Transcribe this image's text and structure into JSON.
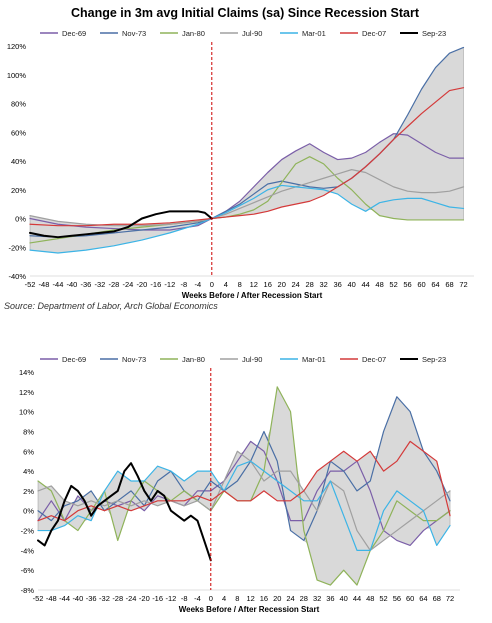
{
  "source_note": "Source: Department of Labor, Arch Global Economics",
  "chart_data": [
    {
      "type": "line",
      "title": "Change in 3m avg Initial Claims (sa) Since Recession Start",
      "xlabel": "Weeks Before / After Recession Start",
      "ylabel": "",
      "x_ticks": [
        "-52",
        "-48",
        "-44",
        "-40",
        "-36",
        "-32",
        "-28",
        "-24",
        "-20",
        "-16",
        "-12",
        "-8",
        "-4",
        "0",
        "4",
        "8",
        "12",
        "16",
        "20",
        "24",
        "28",
        "32",
        "36",
        "40",
        "44",
        "48",
        "52",
        "56",
        "60",
        "64",
        "68",
        "72"
      ],
      "y_ticks": [
        "120%",
        "100%",
        "80%",
        "60%",
        "40%",
        "20%",
        "0%",
        "-20%",
        "-40%"
      ],
      "ylim": [
        -40,
        120
      ],
      "xlim": [
        -52,
        75
      ],
      "grid": false,
      "legend": "top",
      "recession_start_marker": 0,
      "shaded_band": "min-max range of past recessions (grey)",
      "series": [
        {
          "name": "Dec-69",
          "color": "#7b5fa8",
          "x": [
            -52,
            -44,
            -36,
            -28,
            -20,
            -12,
            -4,
            0,
            4,
            8,
            12,
            16,
            20,
            24,
            28,
            32,
            36,
            40,
            44,
            48,
            52,
            56,
            60,
            64,
            68,
            72
          ],
          "values": [
            0,
            -4,
            -6,
            -7,
            -8,
            -8,
            -5,
            0,
            5,
            12,
            22,
            32,
            41,
            47,
            52,
            46,
            41,
            42,
            46,
            53,
            59,
            58,
            52,
            46,
            42,
            42
          ]
        },
        {
          "name": "Nov-73",
          "color": "#4a6fa5",
          "x": [
            -52,
            -44,
            -36,
            -28,
            -20,
            -12,
            -4,
            0,
            4,
            8,
            12,
            16,
            20,
            24,
            28,
            32,
            36,
            40,
            44,
            48,
            52,
            56,
            60,
            64,
            68,
            72
          ],
          "values": [
            -12,
            -13,
            -12,
            -10,
            -8,
            -6,
            -3,
            0,
            5,
            10,
            17,
            24,
            26,
            24,
            22,
            21,
            22,
            28,
            36,
            45,
            55,
            72,
            90,
            105,
            115,
            119
          ]
        },
        {
          "name": "Jan-80",
          "color": "#8fb35a",
          "x": [
            -52,
            -44,
            -36,
            -28,
            -20,
            -12,
            -4,
            0,
            4,
            8,
            12,
            16,
            20,
            24,
            28,
            32,
            36,
            40,
            44,
            48,
            52,
            56,
            60,
            64,
            68,
            72
          ],
          "values": [
            -17,
            -14,
            -11,
            -8,
            -6,
            -4,
            -2,
            0,
            1,
            3,
            6,
            12,
            25,
            38,
            43,
            38,
            28,
            20,
            10,
            2,
            0,
            -1,
            -1,
            -1,
            -1,
            -1
          ]
        },
        {
          "name": "Jul-90",
          "color": "#a0a0a0",
          "x": [
            -52,
            -44,
            -36,
            -28,
            -20,
            -12,
            -4,
            0,
            4,
            8,
            12,
            16,
            20,
            24,
            28,
            32,
            36,
            40,
            44,
            48,
            52,
            56,
            60,
            64,
            68,
            72
          ],
          "values": [
            2,
            -2,
            -4,
            -5,
            -5,
            -4,
            -2,
            0,
            3,
            7,
            11,
            15,
            19,
            22,
            25,
            28,
            31,
            34,
            32,
            27,
            22,
            19,
            18,
            18,
            19,
            22
          ]
        },
        {
          "name": "Mar-01",
          "color": "#3cb4e6",
          "x": [
            -52,
            -44,
            -36,
            -28,
            -20,
            -12,
            -4,
            0,
            4,
            8,
            12,
            16,
            20,
            24,
            28,
            32,
            36,
            40,
            44,
            48,
            52,
            56,
            60,
            64,
            68,
            72
          ],
          "values": [
            -22,
            -24,
            -22,
            -19,
            -15,
            -10,
            -4,
            0,
            4,
            9,
            14,
            20,
            23,
            22,
            21,
            20,
            17,
            10,
            5,
            11,
            13,
            14,
            14,
            11,
            8,
            7
          ]
        },
        {
          "name": "Dec-07",
          "color": "#d43a3a",
          "x": [
            -52,
            -44,
            -36,
            -28,
            -20,
            -12,
            -4,
            0,
            4,
            8,
            12,
            16,
            20,
            24,
            28,
            32,
            36,
            40,
            44,
            48,
            52,
            56,
            60,
            64,
            68,
            72
          ],
          "values": [
            -4,
            -5,
            -5,
            -4,
            -4,
            -3,
            -1,
            0,
            1,
            2,
            3,
            5,
            8,
            10,
            12,
            16,
            22,
            28,
            36,
            45,
            55,
            64,
            73,
            81,
            89,
            91
          ]
        },
        {
          "name": "Sep-23",
          "color": "#000000",
          "x": [
            -52,
            -48,
            -44,
            -40,
            -36,
            -32,
            -28,
            -24,
            -20,
            -16,
            -12,
            -8,
            -4,
            -2,
            0
          ],
          "values": [
            -10,
            -12,
            -13,
            -12,
            -11,
            -10,
            -9,
            -6,
            0,
            3,
            5,
            5,
            5,
            4,
            0
          ]
        }
      ]
    },
    {
      "type": "line",
      "title": "",
      "xlabel": "Weeks Before / After Recession Start",
      "ylabel": "",
      "x_ticks": [
        "-52",
        "-48",
        "-44",
        "-40",
        "-36",
        "-32",
        "-28",
        "-24",
        "-20",
        "-16",
        "-12",
        "-8",
        "-4",
        "0",
        "4",
        "8",
        "12",
        "16",
        "20",
        "24",
        "28",
        "32",
        "36",
        "40",
        "44",
        "48",
        "52",
        "56",
        "60",
        "64",
        "68",
        "72"
      ],
      "y_ticks": [
        "14%",
        "12%",
        "10%",
        "8%",
        "6%",
        "4%",
        "2%",
        "0%",
        "-2%",
        "-4%",
        "-6%",
        "-8%"
      ],
      "ylim": [
        -8,
        14
      ],
      "xlim": [
        -52,
        75
      ],
      "grid": false,
      "legend": "top",
      "recession_start_marker": 0,
      "shaded_band": "min-max range of past recessions (grey)",
      "series": [
        {
          "name": "Dec-69",
          "color": "#7b5fa8",
          "x": [
            -52,
            -48,
            -44,
            -40,
            -36,
            -32,
            -28,
            -24,
            -20,
            -16,
            -12,
            -8,
            -4,
            0,
            4,
            8,
            12,
            16,
            20,
            24,
            28,
            32,
            36,
            40,
            44,
            48,
            52,
            56,
            60,
            64,
            68,
            72
          ],
          "values": [
            -1,
            1,
            -1,
            1.5,
            0,
            1,
            0.5,
            1,
            0,
            1.5,
            1,
            0.5,
            2,
            2,
            3,
            5,
            7,
            6,
            3,
            -1,
            -1,
            2,
            4,
            4,
            5,
            2,
            -2,
            -3,
            -3.5,
            -2,
            -1,
            0
          ]
        },
        {
          "name": "Nov-73",
          "color": "#4a6fa5",
          "x": [
            -52,
            -48,
            -44,
            -40,
            -36,
            -32,
            -28,
            -24,
            -20,
            -16,
            -12,
            -8,
            -4,
            0,
            4,
            8,
            12,
            16,
            20,
            24,
            28,
            32,
            36,
            40,
            44,
            48,
            52,
            56,
            60,
            64,
            68,
            72
          ],
          "values": [
            0,
            -1,
            0.5,
            1,
            2,
            0,
            1,
            2,
            0.5,
            3,
            4,
            2,
            1,
            3,
            2,
            3,
            5,
            8,
            5,
            -2,
            -3,
            0,
            5,
            4,
            2,
            3,
            8,
            11.5,
            10,
            6,
            4,
            1
          ]
        },
        {
          "name": "Jan-80",
          "color": "#8fb35a",
          "x": [
            -52,
            -48,
            -44,
            -40,
            -36,
            -32,
            -28,
            -24,
            -20,
            -16,
            -12,
            -8,
            -4,
            0,
            4,
            8,
            12,
            16,
            20,
            24,
            28,
            32,
            36,
            40,
            44,
            48,
            52,
            56,
            60,
            64,
            68,
            72
          ],
          "values": [
            3,
            2,
            -1,
            -2,
            0,
            2,
            -3,
            1,
            3,
            2,
            1,
            2,
            1,
            0,
            2,
            1,
            1,
            4,
            12.5,
            10,
            -2,
            -7,
            -7.5,
            -6,
            -7.5,
            -4,
            -2,
            1,
            0,
            -1,
            -1,
            0
          ]
        },
        {
          "name": "Jul-90",
          "color": "#a0a0a0",
          "x": [
            -52,
            -48,
            -44,
            -40,
            -36,
            -32,
            -28,
            -24,
            -20,
            -16,
            -12,
            -8,
            -4,
            0,
            4,
            8,
            12,
            16,
            20,
            24,
            28,
            32,
            36,
            40,
            44,
            48,
            52,
            56,
            60,
            64,
            68,
            72
          ],
          "values": [
            2,
            2.5,
            1,
            0.5,
            1,
            0.5,
            1,
            0.5,
            1,
            0.5,
            1,
            0.5,
            1,
            0,
            3,
            6,
            5,
            3,
            4,
            4,
            2,
            0,
            3,
            2,
            -2,
            -4,
            -3,
            -2,
            -1,
            0,
            1,
            2
          ]
        },
        {
          "name": "Mar-01",
          "color": "#3cb4e6",
          "x": [
            -52,
            -48,
            -44,
            -40,
            -36,
            -32,
            -28,
            -24,
            -20,
            -16,
            -12,
            -8,
            -4,
            0,
            4,
            8,
            12,
            16,
            20,
            24,
            28,
            32,
            36,
            40,
            44,
            48,
            52,
            56,
            60,
            64,
            68,
            72
          ],
          "values": [
            -2,
            -2,
            -1.5,
            -0.5,
            -1,
            2,
            4,
            3,
            3,
            4.5,
            4,
            3,
            4,
            4,
            2,
            4.5,
            5,
            4,
            3,
            2,
            1,
            1,
            3,
            -0.5,
            -4,
            -4,
            0,
            2,
            1,
            0,
            -3.5,
            -1.5
          ]
        },
        {
          "name": "Dec-07",
          "color": "#d43a3a",
          "x": [
            -52,
            -48,
            -44,
            -40,
            -36,
            -32,
            -28,
            -24,
            -20,
            -16,
            -12,
            -8,
            -4,
            0,
            4,
            8,
            12,
            16,
            20,
            24,
            28,
            32,
            36,
            40,
            44,
            48,
            52,
            56,
            60,
            64,
            68,
            72
          ],
          "values": [
            -1,
            -0.5,
            -1,
            0,
            0.5,
            0,
            0.5,
            0,
            0.5,
            1,
            1,
            1,
            1.5,
            1,
            2,
            1,
            1,
            2,
            1,
            1,
            2,
            4,
            5,
            6,
            5,
            6,
            4,
            5,
            7,
            6,
            5,
            -0.5
          ]
        },
        {
          "name": "Sep-23",
          "color": "#000000",
          "x": [
            -52,
            -50,
            -48,
            -46,
            -44,
            -42,
            -40,
            -38,
            -36,
            -34,
            -32,
            -30,
            -28,
            -26,
            -24,
            -22,
            -20,
            -18,
            -16,
            -14,
            -12,
            -10,
            -8,
            -6,
            -4,
            -2,
            0
          ],
          "values": [
            -3,
            -3.5,
            -2,
            -1,
            1,
            2.5,
            2,
            1,
            -0.5,
            0.5,
            1,
            1.5,
            2,
            4,
            4.8,
            3.5,
            2,
            1,
            2,
            1.5,
            0,
            -0.5,
            -1,
            -0.5,
            -1,
            -3,
            -5
          ]
        }
      ]
    }
  ]
}
